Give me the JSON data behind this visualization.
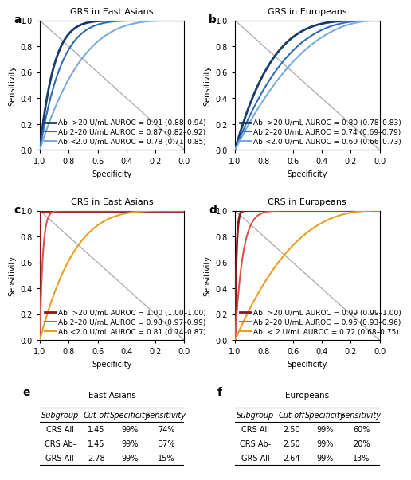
{
  "panel_a": {
    "title": "GRS in East Asians",
    "curves": [
      {
        "auroc": 0.91,
        "label": "Ab  >20 U/mL AUROC = 0.91 (0.88–0.94)",
        "color": "#1a3a6b",
        "lw": 2.0
      },
      {
        "auroc": 0.87,
        "label": "Ab 2–20 U/mL AUROC = 0.87 (0.82–0.92)",
        "color": "#2e6db4",
        "lw": 1.5
      },
      {
        "auroc": 0.78,
        "label": "Ab <2.0 U/mL AUROC = 0.78 (0.71–0.85)",
        "color": "#7aabde",
        "lw": 1.5
      }
    ]
  },
  "panel_b": {
    "title": "GRS in Europeans",
    "curves": [
      {
        "auroc": 0.8,
        "label": "Ab  >20 U/mL AUROC = 0.80 (0.78–0.83)",
        "color": "#1a3a6b",
        "lw": 2.0
      },
      {
        "auroc": 0.74,
        "label": "Ab 2–20 U/mL AUROC = 0.74 (0.69–0.79)",
        "color": "#2e6db4",
        "lw": 1.5
      },
      {
        "auroc": 0.69,
        "label": "Ab <2.0 U/mL AUROC = 0.69 (0.66–0.73)",
        "color": "#7aabde",
        "lw": 1.5
      }
    ]
  },
  "panel_c": {
    "title": "CRS in East Asians",
    "curves": [
      {
        "auroc": 1.0,
        "label": "Ab  >20 U/mL AUROC = 1.00 (1.00–1.00)",
        "color": "#8b1a1a",
        "lw": 2.0
      },
      {
        "auroc": 0.98,
        "label": "Ab 2–20 U/mL AUROC = 0.98 (0.97–0.99)",
        "color": "#d9534f",
        "lw": 1.5
      },
      {
        "auroc": 0.81,
        "label": "Ab <2.0 U/mL AUROC = 0.81 (0.74–0.87)",
        "color": "#e8a020",
        "lw": 1.5
      }
    ]
  },
  "panel_d": {
    "title": "CRS in Europeans",
    "curves": [
      {
        "auroc": 0.99,
        "label": "Ab  >20 U/mL AUROC = 0.99 (0.99–1.00)",
        "color": "#8b1a1a",
        "lw": 2.0
      },
      {
        "auroc": 0.95,
        "label": "Ab 2–20 U/mL AUROC = 0.95 (0.93–0.96)",
        "color": "#d9534f",
        "lw": 1.5
      },
      {
        "auroc": 0.72,
        "label": "Ab  < 2 U/mL AUROC = 0.72 (0.68–0.75)",
        "color": "#e8a020",
        "lw": 1.5
      }
    ]
  },
  "table_e": {
    "title": "East Asians",
    "headers": [
      "Subgroup",
      "Cut-off",
      "Specificity",
      "Sensitivity"
    ],
    "rows": [
      [
        "CRS All",
        "1.45",
        "99%",
        "74%"
      ],
      [
        "CRS Ab-",
        "1.45",
        "99%",
        "37%"
      ],
      [
        "GRS All",
        "2.78",
        "99%",
        "15%"
      ]
    ]
  },
  "table_f": {
    "title": "Europeans",
    "headers": [
      "Subgroup",
      "Cut-off",
      "Specificity",
      "Sensitivity"
    ],
    "rows": [
      [
        "CRS All",
        "2.50",
        "99%",
        "60%"
      ],
      [
        "CRS Ab-",
        "2.50",
        "99%",
        "20%"
      ],
      [
        "GRS All",
        "2.64",
        "99%",
        "13%"
      ]
    ]
  },
  "diagonal_color": "#b0b0b0",
  "bg_color": "#ffffff",
  "font_size_title": 8,
  "font_size_legend": 6.5,
  "font_size_axis": 7,
  "font_size_table": 7.5
}
